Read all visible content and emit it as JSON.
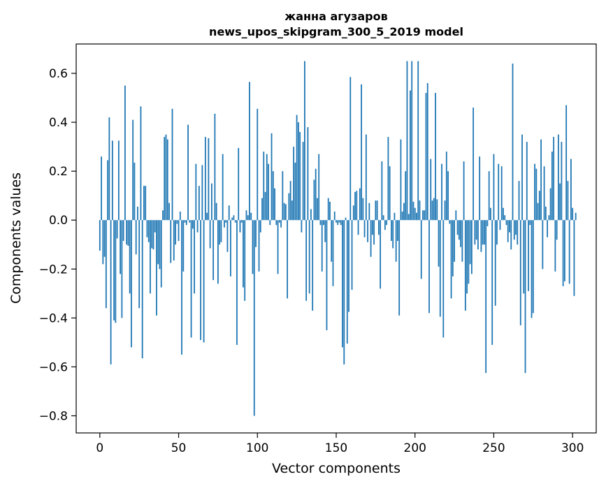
{
  "chart_data": {
    "type": "bar",
    "title": [
      "жанна агузаров",
      "news_upos_skipgram_300_5_2019 model"
    ],
    "xlabel": "Vector components",
    "ylabel": "Components values",
    "xlim": [
      -15,
      315
    ],
    "ylim": [
      -0.87,
      0.72
    ],
    "xticks": [
      0,
      50,
      100,
      150,
      200,
      250,
      300
    ],
    "xtick_labels": [
      "0",
      "50",
      "100",
      "150",
      "200",
      "250",
      "300"
    ],
    "yticks": [
      -0.8,
      -0.6,
      -0.4,
      -0.2,
      0.0,
      0.2,
      0.4,
      0.6
    ],
    "ytick_labels": [
      "−0.8",
      "−0.6",
      "−0.4",
      "−0.2",
      "0.0",
      "0.2",
      "0.4",
      "0.6"
    ],
    "grid": false,
    "bar_color": "#1f77b4",
    "x_start": 0,
    "values": [
      -0.125,
      0.26,
      -0.18,
      -0.15,
      -0.36,
      0.245,
      0.42,
      -0.59,
      0.325,
      -0.41,
      -0.42,
      -0.075,
      0.325,
      -0.22,
      -0.4,
      -0.085,
      0.55,
      -0.1,
      -0.105,
      -0.3,
      -0.52,
      0.41,
      0.235,
      -0.14,
      0.055,
      -0.36,
      0.465,
      -0.565,
      0.14,
      0.14,
      -0.07,
      -0.09,
      -0.3,
      -0.115,
      -0.12,
      -0.05,
      -0.39,
      -0.18,
      -0.2,
      -0.275,
      0.04,
      0.34,
      0.35,
      0.33,
      0.07,
      -0.175,
      0.455,
      -0.165,
      -0.1,
      -0.015,
      -0.085,
      0.035,
      -0.55,
      -0.21,
      -0.01,
      -0.02,
      0.39,
      -0.01,
      -0.48,
      -0.035,
      -0.3,
      0.23,
      -0.05,
      0.14,
      -0.49,
      0.225,
      -0.5,
      0.34,
      0.03,
      0.335,
      -0.115,
      0.15,
      -0.245,
      0.435,
      0.07,
      -0.26,
      -0.1,
      -0.09,
      0.27,
      -0.03,
      -0.01,
      -0.13,
      0.06,
      -0.23,
      0.01,
      0.02,
      -0.01,
      -0.51,
      0.295,
      -0.05,
      -0.01,
      -0.275,
      -0.33,
      0.04,
      0.02,
      0.565,
      0.03,
      -0.22,
      -0.8,
      -0.11,
      0.455,
      -0.21,
      -0.05,
      0.09,
      0.28,
      0.115,
      0.27,
      0.23,
      -0.02,
      0.355,
      0.2,
      0.13,
      -0.02,
      -0.22,
      -0.01,
      -0.03,
      0.2,
      0.07,
      0.065,
      -0.32,
      0.11,
      0.16,
      0.08,
      0.3,
      0.235,
      0.43,
      0.4,
      0.36,
      -0.05,
      0.32,
      0.65,
      -0.33,
      0.38,
      -0.3,
      0.045,
      -0.37,
      0.165,
      0.21,
      0.09,
      0.27,
      -0.02,
      -0.21,
      -0.02,
      -0.09,
      -0.45,
      0.09,
      0.075,
      -0.17,
      -0.27,
      0.035,
      -0.01,
      -0.02,
      -0.01,
      -0.02,
      -0.52,
      -0.59,
      0.01,
      -0.505,
      -0.375,
      0.585,
      -0.285,
      0.06,
      0.115,
      0.12,
      -0.06,
      0.13,
      0.555,
      0.09,
      -0.07,
      0.35,
      -0.09,
      0.07,
      -0.15,
      -0.06,
      -0.1,
      0.08,
      0.08,
      -0.06,
      -0.28,
      0.24,
      0.02,
      -0.04,
      -0.02,
      0.34,
      0.22,
      -0.085,
      -0.115,
      0.03,
      -0.17,
      -0.085,
      -0.39,
      0.33,
      0.035,
      0.07,
      0.2,
      0.65,
      0.025,
      0.53,
      0.65,
      0.075,
      0.05,
      0.03,
      0.65,
      0.08,
      -0.24,
      0.04,
      0.04,
      0.52,
      0.56,
      -0.38,
      0.25,
      0.08,
      0.09,
      0.52,
      0.085,
      -0.19,
      -0.395,
      0.23,
      -0.48,
      0.08,
      0.28,
      0.2,
      -0.015,
      -0.32,
      -0.23,
      -0.17,
      0.04,
      -0.06,
      -0.08,
      -0.11,
      -0.17,
      0.24,
      -0.37,
      -0.3,
      -0.26,
      -0.18,
      -0.22,
      0.46,
      -0.1,
      -0.08,
      -0.12,
      0.26,
      -0.13,
      -0.1,
      -0.1,
      -0.625,
      -0.025,
      0.2,
      0.05,
      -0.51,
      0.27,
      -0.35,
      -0.1,
      0.23,
      -0.04,
      0.22,
      0.05,
      0.02,
      -0.02,
      -0.09,
      -0.05,
      -0.12,
      0.64,
      -0.08,
      -0.06,
      -0.1,
      0.16,
      -0.43,
      0.35,
      -0.3,
      -0.625,
      0.32,
      -0.29,
      -0.02,
      -0.4,
      -0.38,
      0.23,
      0.21,
      0.07,
      0.12,
      0.33,
      -0.2,
      0.22,
      0.055,
      -0.07,
      0.02,
      0.13,
      0.28,
      0.34,
      -0.21,
      -0.08,
      0.35,
      0.15,
      0.32,
      -0.27,
      -0.25,
      0.47,
      0.16,
      -0.26,
      0.25,
      0.05,
      -0.31,
      0.03
    ]
  }
}
